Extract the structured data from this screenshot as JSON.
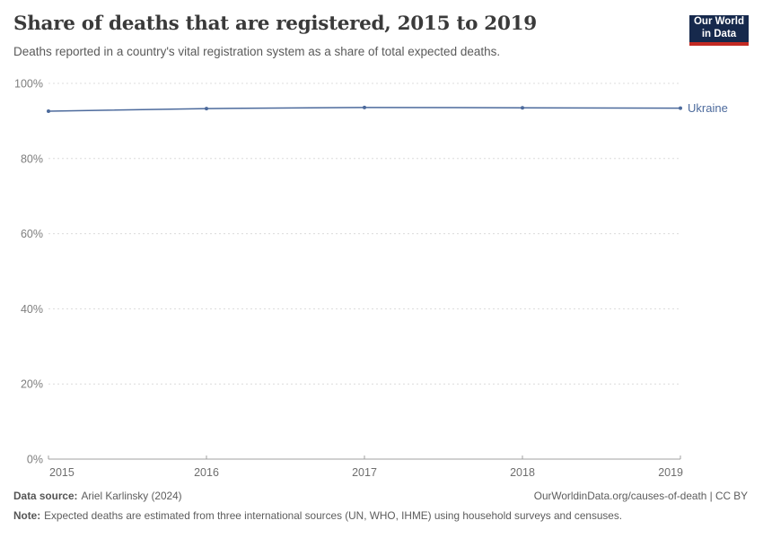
{
  "header": {
    "title": "Share of deaths that are registered, 2015 to 2019",
    "subtitle": "Deaths reported in a country's vital registration system as a share of total expected deaths.",
    "logo": {
      "line1": "Our World",
      "line2": "in Data",
      "background_color": "#16294c",
      "accent_color": "#c32a23"
    }
  },
  "chart_data": {
    "type": "line",
    "x": [
      2015,
      2016,
      2017,
      2018,
      2019
    ],
    "series": [
      {
        "name": "Ukraine",
        "values": [
          92.6,
          93.3,
          93.6,
          93.5,
          93.4
        ],
        "color": "#4c6a9c"
      }
    ],
    "title": "Share of deaths that are registered, 2015 to 2019",
    "xlabel": "",
    "ylabel": "",
    "ylim": [
      0,
      100
    ],
    "yticks": [
      0,
      20,
      40,
      60,
      80,
      100
    ],
    "ytick_suffix": "%",
    "grid": "horizontal-dotted",
    "legend_position": "end-of-line-label",
    "colors": {
      "grid_line": "#dcdcdc",
      "axis_line": "#a1a1a1",
      "y_tick_label": "#7e7e7e",
      "x_tick_label": "#6e6e6e"
    }
  },
  "footer": {
    "data_source_label": "Data source:",
    "data_source": "Ariel Karlinsky (2024)",
    "attribution": "OurWorldinData.org/causes-of-death | CC BY",
    "note_label": "Note:",
    "note": "Expected deaths are estimated from three international sources (UN, WHO, IHME) using household surveys and censuses."
  }
}
